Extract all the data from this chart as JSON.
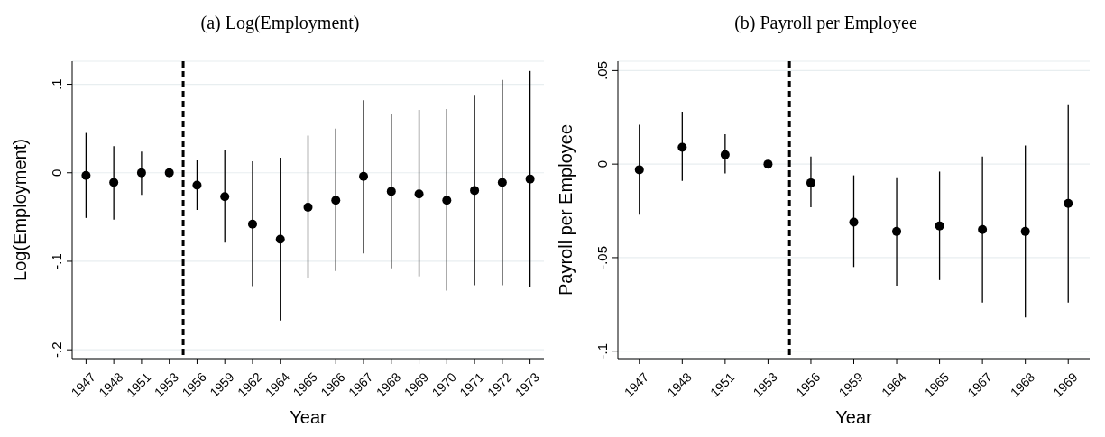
{
  "chart_data": [
    {
      "type": "scatter",
      "title": "(a) Log(Employment)",
      "xlabel": "Year",
      "ylabel": "Log(Employment)",
      "categories": [
        "1947",
        "1948",
        "1951",
        "1953",
        "1956",
        "1959",
        "1962",
        "1964",
        "1965",
        "1966",
        "1967",
        "1968",
        "1969",
        "1970",
        "1971",
        "1972",
        "1973"
      ],
      "values": [
        -0.003,
        -0.011,
        0,
        0,
        -0.014,
        -0.027,
        -0.058,
        -0.075,
        -0.039,
        -0.031,
        -0.004,
        -0.021,
        -0.024,
        -0.031,
        -0.02,
        -0.011,
        -0.007
      ],
      "errors": [
        [
          -0.051,
          0.045
        ],
        [
          -0.053,
          0.03
        ],
        [
          -0.025,
          0.024
        ],
        null,
        [
          -0.042,
          0.014
        ],
        [
          -0.079,
          0.026
        ],
        [
          -0.128,
          0.013
        ],
        [
          -0.167,
          0.017
        ],
        [
          -0.119,
          0.042
        ],
        [
          -0.111,
          0.05
        ],
        [
          -0.091,
          0.082
        ],
        [
          -0.108,
          0.067
        ],
        [
          -0.117,
          0.071
        ],
        [
          -0.133,
          0.072
        ],
        [
          -0.127,
          0.088
        ],
        [
          -0.127,
          0.105
        ],
        [
          -0.129,
          0.115
        ]
      ],
      "color": "#000000",
      "marker": "circle",
      "ylim": [
        -0.21,
        0.126
      ],
      "yticks": [
        {
          "value": -0.2,
          "label": "-.2"
        },
        {
          "value": -0.1,
          "label": "-.1"
        },
        0,
        {
          "value": 0.1,
          "label": ".1"
        }
      ],
      "grid": "y"
    },
    {
      "type": "scatter",
      "title": "(b) Payroll per Employee",
      "xlabel": "Year",
      "ylabel": "Payroll per Employee",
      "categories": [
        "1947",
        "1948",
        "1951",
        "1953",
        "1956",
        "1959",
        "1964",
        "1965",
        "1967",
        "1968",
        "1969"
      ],
      "values": [
        -0.003,
        0.009,
        0.005,
        0,
        -0.01,
        -0.031,
        -0.036,
        -0.033,
        -0.035,
        -0.036,
        -0.021
      ],
      "errors": [
        [
          -0.027,
          0.021
        ],
        [
          -0.009,
          0.028
        ],
        [
          -0.005,
          0.016
        ],
        null,
        [
          -0.023,
          0.004
        ],
        [
          -0.055,
          -0.006
        ],
        [
          -0.065,
          -0.007
        ],
        [
          -0.062,
          -0.004
        ],
        [
          -0.074,
          0.004
        ],
        [
          -0.082,
          0.01
        ],
        [
          -0.074,
          0.032
        ]
      ],
      "color": "#000000",
      "marker": "circle",
      "ylim": [
        -0.104,
        0.055
      ],
      "yticks": [
        {
          "value": -0.1,
          "label": "-.1"
        },
        {
          "value": -0.05,
          "label": "-.05"
        },
        0,
        {
          "value": 0.05,
          "label": ".05"
        }
      ],
      "grid": "y"
    }
  ]
}
